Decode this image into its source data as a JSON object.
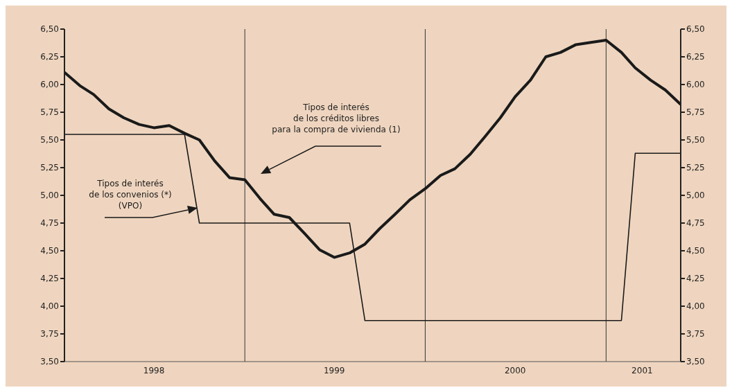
{
  "chart_data": {
    "type": "line",
    "x": [
      "1998-01",
      "1998-02",
      "1998-03",
      "1998-04",
      "1998-05",
      "1998-06",
      "1998-07",
      "1998-08",
      "1998-09",
      "1998-10",
      "1998-11",
      "1998-12",
      "1999-01",
      "1999-02",
      "1999-03",
      "1999-04",
      "1999-05",
      "1999-06",
      "1999-07",
      "1999-08",
      "1999-09",
      "1999-10",
      "1999-11",
      "1999-12",
      "2000-01",
      "2000-02",
      "2000-03",
      "2000-04",
      "2000-05",
      "2000-06",
      "2000-07",
      "2000-08",
      "2000-09",
      "2000-10",
      "2000-11",
      "2000-12",
      "2001-01",
      "2001-02",
      "2001-03",
      "2001-04",
      "2001-05",
      "2001-06"
    ],
    "series": [
      {
        "color": "#1a1a1a",
        "values": [
          6.11,
          5.99,
          5.91,
          5.78,
          5.7,
          5.64,
          5.61,
          5.63,
          5.56,
          5.5,
          5.31,
          5.16,
          5.14,
          4.97,
          4.83,
          4.8,
          4.66,
          4.51,
          4.44,
          4.48,
          4.56,
          4.7,
          4.83,
          4.96,
          5.06,
          5.18,
          5.24,
          5.37,
          5.53,
          5.7,
          5.89,
          6.04,
          6.25,
          6.29,
          6.36,
          6.38,
          6.4,
          6.29,
          6.15,
          6.04,
          5.95,
          5.82
        ]
      },
      {
        "name": "Tipos de interés\nde los convenios (*)\n(VPO)",
        "color": "#1a1a1a",
        "values": [
          5.55,
          5.55,
          5.55,
          5.55,
          5.55,
          5.55,
          5.55,
          5.55,
          5.55,
          4.75,
          4.75,
          4.75,
          4.75,
          4.75,
          4.75,
          4.75,
          4.75,
          4.75,
          4.75,
          4.75,
          3.87,
          3.87,
          3.87,
          3.87,
          3.87,
          3.87,
          3.87,
          3.87,
          3.87,
          3.87,
          3.87,
          3.87,
          3.87,
          3.87,
          3.87,
          3.87,
          3.87,
          3.87,
          5.38,
          5.38,
          5.38,
          5.38
        ]
      }
    ],
    "xlim": [
      "1998-01",
      "2001-06"
    ],
    "xticks": [
      {
        "value": "1998-07",
        "label": "1998"
      },
      {
        "value": "1999-07",
        "label": "1999"
      },
      {
        "value": "2000-07",
        "label": "2000"
      },
      {
        "value": "2001-03-15",
        "label": "2001"
      }
    ],
    "ylim": [
      3.5,
      6.5
    ],
    "yticks": [
      {
        "value": 3.5,
        "label": "3,50"
      },
      {
        "value": 3.75,
        "label": "3,75"
      },
      {
        "value": 4,
        "label": "4,00"
      },
      {
        "value": 4.25,
        "label": "4,25"
      },
      {
        "value": 4.5,
        "label": "4,50"
      },
      {
        "value": 4.75,
        "label": "4,75"
      },
      {
        "value": 5,
        "label": "5,00"
      },
      {
        "value": 5.25,
        "label": "5,25"
      },
      {
        "value": 5.5,
        "label": "5,50"
      },
      {
        "value": 5.75,
        "label": "5,75"
      },
      {
        "value": 6,
        "label": "6,00"
      },
      {
        "value": 6.25,
        "label": "6,25"
      },
      {
        "value": 6.5,
        "label": "6,50"
      }
    ],
    "y2lim": [
      3.5,
      6.5
    ],
    "y2ticks": [
      {
        "value": 3.5,
        "label": "3,50"
      },
      {
        "value": 3.75,
        "label": "3,75"
      },
      {
        "value": 4,
        "label": "4,00"
      },
      {
        "value": 4.25,
        "label": "4,25"
      },
      {
        "value": 4.5,
        "label": "4,50"
      },
      {
        "value": 4.75,
        "label": "4,75"
      },
      {
        "value": 5,
        "label": "5,00"
      },
      {
        "value": 5.25,
        "label": "5,25"
      },
      {
        "value": 5.5,
        "label": "5,50"
      },
      {
        "value": 5.75,
        "label": "5,75"
      },
      {
        "value": 6,
        "label": "6,00"
      },
      {
        "value": 6.25,
        "label": "6,25"
      },
      {
        "value": 6.5,
        "label": "6,50"
      }
    ],
    "ref_lines": [
      {
        "axis": "x",
        "value": "1999-01",
        "label": null
      },
      {
        "axis": "x",
        "value": "2000-01",
        "label": null
      },
      {
        "axis": "x",
        "value": "2001-01",
        "label": null
      }
    ],
    "annotations": [
      "Tipos de interés\nde los créditos libres\npara la compra de vivienda (1)"
    ],
    "grid": false,
    "marker": "none",
    "line_style": "solid"
  }
}
